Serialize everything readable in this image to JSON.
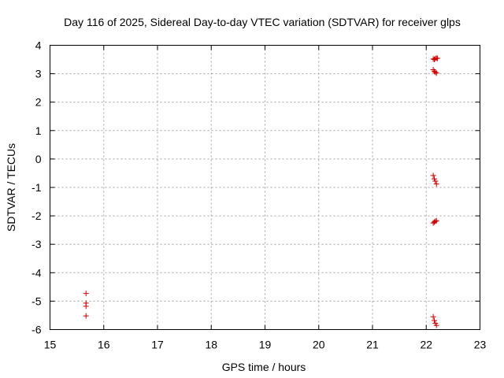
{
  "chart_data": {
    "type": "scatter",
    "title": "Day 116 of 2025, Sidereal Day-to-day VTEC variation (SDTVAR) for receiver glps",
    "xlabel": "GPS time / hours",
    "ylabel": "SDTVAR / TECUs",
    "xlim": [
      15,
      23
    ],
    "ylim": [
      -6,
      4
    ],
    "xticks": [
      15,
      16,
      17,
      18,
      19,
      20,
      21,
      22,
      23
    ],
    "yticks": [
      -6,
      -5,
      -4,
      -3,
      -2,
      -1,
      0,
      1,
      2,
      3,
      4
    ],
    "grid": true,
    "legend": "none",
    "marker": "plus",
    "color": "#cc0000",
    "points": [
      {
        "x": 15.67,
        "y": -4.73
      },
      {
        "x": 15.67,
        "y": -5.07
      },
      {
        "x": 15.67,
        "y": -5.18
      },
      {
        "x": 15.67,
        "y": -5.52
      },
      {
        "x": 22.13,
        "y": 3.52
      },
      {
        "x": 22.15,
        "y": 3.5
      },
      {
        "x": 22.17,
        "y": 3.53
      },
      {
        "x": 22.19,
        "y": 3.55
      },
      {
        "x": 22.21,
        "y": 3.54
      },
      {
        "x": 22.13,
        "y": 3.14
      },
      {
        "x": 22.15,
        "y": 3.08
      },
      {
        "x": 22.17,
        "y": 3.05
      },
      {
        "x": 22.19,
        "y": 3.02
      },
      {
        "x": 22.13,
        "y": -0.58
      },
      {
        "x": 22.15,
        "y": -0.7
      },
      {
        "x": 22.17,
        "y": -0.78
      },
      {
        "x": 22.19,
        "y": -0.88
      },
      {
        "x": 22.13,
        "y": -2.25
      },
      {
        "x": 22.15,
        "y": -2.22
      },
      {
        "x": 22.17,
        "y": -2.19
      },
      {
        "x": 22.19,
        "y": -2.17
      },
      {
        "x": 22.13,
        "y": -5.55
      },
      {
        "x": 22.15,
        "y": -5.68
      },
      {
        "x": 22.17,
        "y": -5.78
      },
      {
        "x": 22.19,
        "y": -5.85
      }
    ]
  }
}
